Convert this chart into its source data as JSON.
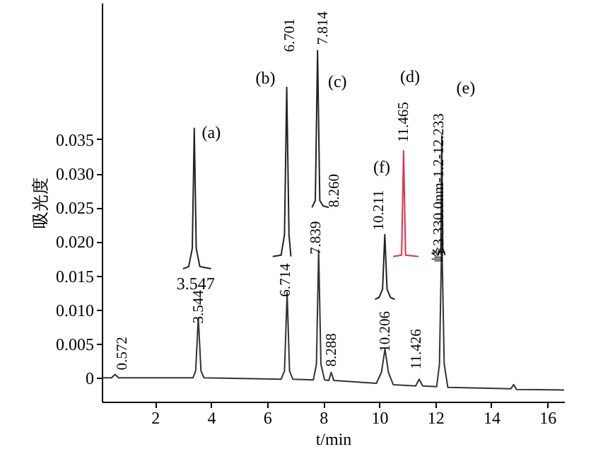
{
  "chart_data": {
    "type": "line",
    "xlabel": "t/min",
    "ylabel": "吸光度",
    "xlim": [
      0.1,
      16.6
    ],
    "ylim": [
      -0.0035,
      0.055
    ],
    "xticks": [
      2,
      4,
      6,
      8,
      10,
      12,
      14,
      16
    ],
    "yticks": [
      0,
      0.005,
      {
        "value": 0.01,
        "label": "0.010"
      },
      0.015,
      {
        "value": 0.02,
        "label": "0.020"
      },
      0.025,
      {
        "value": 0.03,
        "label": "0.030"
      },
      0.035
    ],
    "series": [
      {
        "color": "#333333",
        "x": [
          0.1,
          0.45,
          0.572,
          0.7,
          3.35,
          3.45,
          3.544,
          3.64,
          3.75,
          6.5,
          6.62,
          6.714,
          6.8,
          6.92,
          7.65,
          7.76,
          7.839,
          7.92,
          8.05,
          8.2,
          8.288,
          8.38,
          9.9,
          10.08,
          10.206,
          10.33,
          10.5,
          11.3,
          11.426,
          11.55,
          12.05,
          12.15,
          12.233,
          12.32,
          12.45,
          14.7,
          14.8,
          14.9,
          16.6
        ],
        "values": [
          0,
          0,
          0.0005,
          0,
          0,
          0.001,
          0.0088,
          0.001,
          0,
          -0.0002,
          0.001,
          0.0125,
          0.001,
          -0.0002,
          -0.0003,
          0.002,
          0.0187,
          0.002,
          -0.0003,
          -0.0004,
          0.0008,
          -0.0004,
          -0.0008,
          0.0008,
          0.0042,
          0.0008,
          -0.001,
          -0.0012,
          -0.0002,
          -0.0012,
          -0.0013,
          0.002,
          0.021,
          0.002,
          -0.0014,
          -0.0016,
          -0.001,
          -0.0017,
          -0.0018
        ]
      },
      {
        "color": "#222222",
        "x": [
          3.0,
          3.2,
          3.33,
          3.4,
          3.47,
          3.6,
          4.0
        ],
        "values": [
          0.016,
          0.0163,
          0.019,
          0.0366,
          0.019,
          0.0163,
          0.016
        ]
      },
      {
        "color": "#222222",
        "x": [
          6.2,
          6.5,
          6.62,
          6.7,
          6.78,
          6.85
        ],
        "values": [
          0.0178,
          0.018,
          0.021,
          0.0426,
          0.021,
          0.0178
        ]
      },
      {
        "color": "#222222",
        "x": [
          7.6,
          7.72,
          7.8,
          7.88,
          8.0,
          8.2
        ],
        "values": [
          0.025,
          0.026,
          0.048,
          0.026,
          0.0252,
          0.025
        ]
      },
      {
        "color": "#222222",
        "x": [
          9.85,
          10.0,
          10.12,
          10.2,
          10.28,
          10.4,
          10.55
        ],
        "values": [
          0.0115,
          0.0118,
          0.013,
          0.021,
          0.013,
          0.0118,
          0.0115
        ]
      },
      {
        "color": "#e0304a",
        "x": [
          10.5,
          10.8,
          10.87,
          10.94,
          11.4
        ],
        "values": [
          0.0178,
          0.018,
          0.0333,
          0.018,
          0.0178
        ]
      },
      {
        "color": "#222222",
        "x": [
          12.1,
          12.2,
          12.233,
          12.27,
          12.35
        ],
        "values": [
          0.018,
          0.019,
          0.0355,
          0.019,
          0.018
        ]
      }
    ],
    "annotations": [
      {
        "text": "3.547",
        "x": 3.2,
        "y": 0.0163
      },
      {
        "text": "(a)",
        "x": 3.4,
        "y": 0.0366
      },
      {
        "text": "(b)",
        "x": 6.7,
        "y": 0.0426
      },
      {
        "text": "(c)",
        "x": 7.8,
        "y": 0.048
      },
      "(d)",
      {
        "text": "(e)",
        "x": 12.233,
        "y": 0.0355
      },
      "(f)",
      {
        "text": "0.572",
        "x": 0.572,
        "y": 0.0005
      },
      {
        "text": "3.544",
        "x": 3.544,
        "y": 0.0088
      },
      {
        "text": "6.714",
        "x": 6.714,
        "y": 0.0125
      },
      {
        "text": "6.701",
        "x": 6.7,
        "y": 0.0426
      },
      {
        "text": "7.814",
        "x": 7.8,
        "y": 0.048
      },
      {
        "text": "8.260",
        "x": 8.2,
        "y": 0.025
      },
      {
        "text": "7.839",
        "x": 7.839,
        "y": 0.0187
      },
      {
        "text": "8.288",
        "x": 8.288,
        "y": 0.0008
      },
      {
        "text": "10.211",
        "x": 10.2,
        "y": 0.021
      },
      {
        "text": "10.206",
        "x": 10.206,
        "y": 0.0042
      },
      {
        "text": "11.426",
        "x": 11.426,
        "y": -0.0002
      },
      {
        "text": "11.465",
        "x": 10.87,
        "y": 0.0333
      },
      {
        "text": "峰3 330.0nm-1.2-12.233",
        "x": 12.233,
        "y": 0.0355
      }
    ]
  }
}
